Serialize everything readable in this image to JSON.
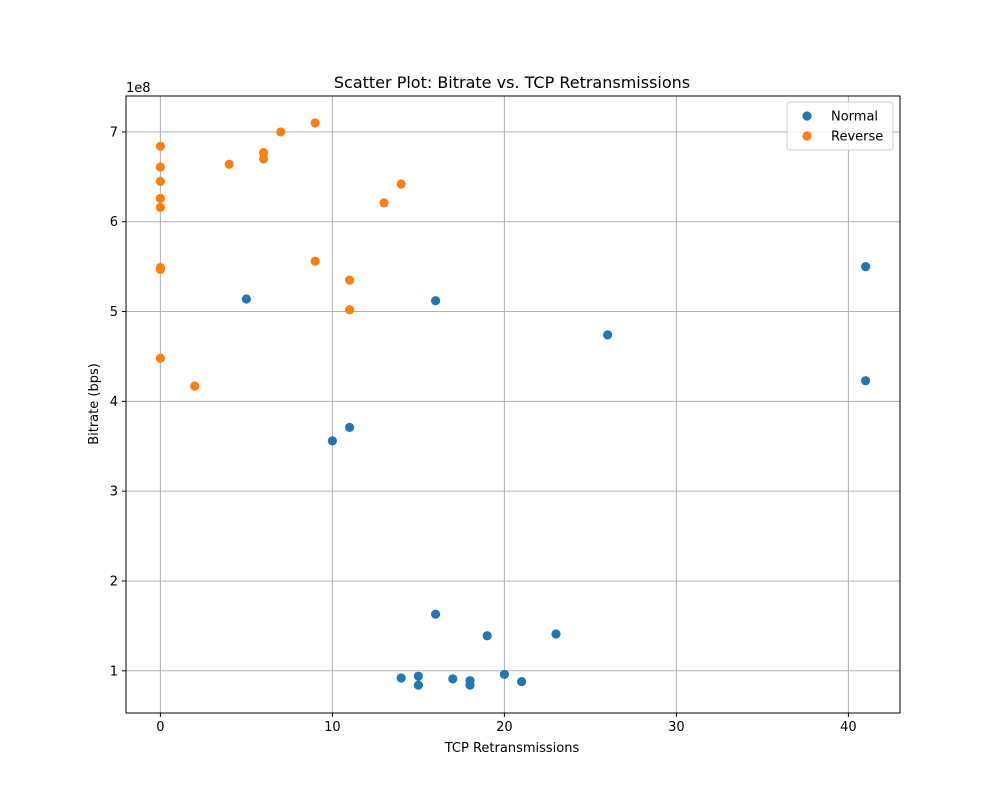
{
  "chart_data": {
    "type": "scatter",
    "title": "Scatter Plot: Bitrate vs. TCP Retransmissions",
    "xlabel": "TCP Retransmissions",
    "ylabel": "Bitrate (bps)",
    "y_scale_label": "1e8",
    "xlim": [
      -2,
      43
    ],
    "ylim": [
      0.53,
      7.4
    ],
    "y_unit_multiplier": 100000000,
    "xticks": [
      0,
      10,
      20,
      30,
      40
    ],
    "xtick_labels": [
      "0",
      "10",
      "20",
      "30",
      "40"
    ],
    "yticks": [
      1,
      2,
      3,
      4,
      5,
      6,
      7
    ],
    "ytick_labels": [
      "1",
      "2",
      "3",
      "4",
      "5",
      "6",
      "7"
    ],
    "grid": true,
    "legend_position": "top-right",
    "series": [
      {
        "name": "Normal",
        "color": "#1f77b4",
        "points": [
          {
            "x": 5,
            "y": 5.14
          },
          {
            "x": 16,
            "y": 5.12
          },
          {
            "x": 26,
            "y": 4.74
          },
          {
            "x": 41,
            "y": 5.5
          },
          {
            "x": 41,
            "y": 4.23
          },
          {
            "x": 10,
            "y": 3.56
          },
          {
            "x": 11,
            "y": 3.71
          },
          {
            "x": 16,
            "y": 1.63
          },
          {
            "x": 19,
            "y": 1.39
          },
          {
            "x": 23,
            "y": 1.41
          },
          {
            "x": 14,
            "y": 0.92
          },
          {
            "x": 15,
            "y": 0.94
          },
          {
            "x": 15,
            "y": 0.84
          },
          {
            "x": 17,
            "y": 0.91
          },
          {
            "x": 18,
            "y": 0.89
          },
          {
            "x": 18,
            "y": 0.84
          },
          {
            "x": 20,
            "y": 0.96
          },
          {
            "x": 21,
            "y": 0.88
          }
        ]
      },
      {
        "name": "Reverse",
        "color": "#ff7f0e",
        "points": [
          {
            "x": 0,
            "y": 6.84
          },
          {
            "x": 0,
            "y": 6.61
          },
          {
            "x": 0,
            "y": 6.45
          },
          {
            "x": 0,
            "y": 6.26
          },
          {
            "x": 0,
            "y": 6.16
          },
          {
            "x": 0,
            "y": 5.49
          },
          {
            "x": 0,
            "y": 5.47
          },
          {
            "x": 0,
            "y": 4.48
          },
          {
            "x": 2,
            "y": 4.17
          },
          {
            "x": 4,
            "y": 6.64
          },
          {
            "x": 6,
            "y": 6.77
          },
          {
            "x": 6,
            "y": 6.7
          },
          {
            "x": 7,
            "y": 7.0
          },
          {
            "x": 9,
            "y": 7.1
          },
          {
            "x": 9,
            "y": 5.56
          },
          {
            "x": 11,
            "y": 5.35
          },
          {
            "x": 11,
            "y": 5.02
          },
          {
            "x": 13,
            "y": 6.21
          },
          {
            "x": 14,
            "y": 6.42
          }
        ]
      }
    ]
  }
}
